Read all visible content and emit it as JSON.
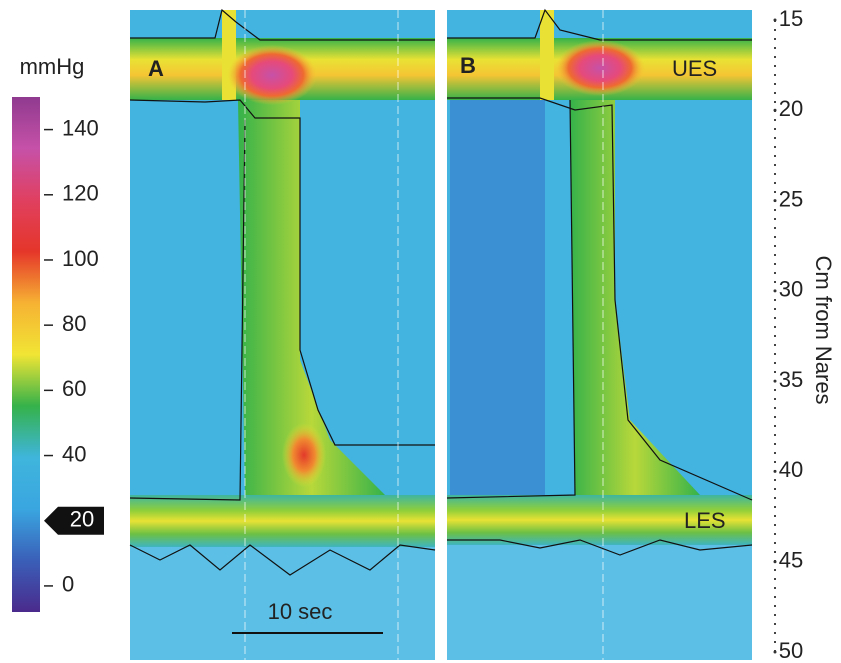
{
  "chart_data": {
    "type": "pressure-topography",
    "colorbar": {
      "label": "mmHg",
      "lim": [
        -8,
        150
      ],
      "ticks": [
        0,
        40,
        60,
        80,
        100,
        120,
        140
      ],
      "isobar": 20,
      "colors": [
        "#4a2a8c",
        "#3a5fb8",
        "#3aa6e0",
        "#3fb5dc",
        "#35b24a",
        "#f1e534",
        "#f6b233",
        "#e5362a",
        "#e04060",
        "#c651a8",
        "#8f3a8f"
      ]
    },
    "ylabel": "Cm from Nares",
    "ylim": [
      15,
      50
    ],
    "yticks": [
      15,
      20,
      25,
      30,
      35,
      40,
      45,
      50
    ],
    "panels": [
      {
        "label": "A"
      },
      {
        "label": "B"
      }
    ],
    "annotations": {
      "ues": "UES",
      "les": "LES",
      "scale": "10 sec"
    }
  }
}
